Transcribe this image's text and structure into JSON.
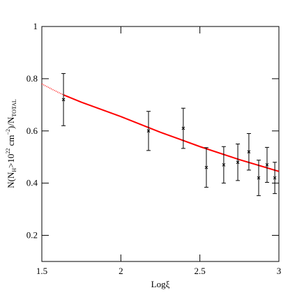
{
  "chart_data": {
    "type": "scatter",
    "xlabel": "Logξ",
    "ylabel_parts": [
      "N(N",
      "H",
      ">10",
      "22",
      " cm",
      "−2",
      ")/N",
      "TOTAL"
    ],
    "x": [
      1.637,
      2.175,
      2.395,
      2.541,
      2.651,
      2.74,
      2.81,
      2.872,
      2.925,
      2.974
    ],
    "values": [
      0.72,
      0.6,
      0.61,
      0.46,
      0.47,
      0.48,
      0.52,
      0.42,
      0.47,
      0.42
    ],
    "errors": [
      0.1,
      0.075,
      0.077,
      0.076,
      0.07,
      0.07,
      0.07,
      0.068,
      0.067,
      0.06
    ],
    "color": "#000000",
    "curves": [
      {
        "x": [
          1.5,
          1.57,
          1.637
        ],
        "values": [
          0.78,
          0.758,
          0.738
        ],
        "color": "#ff0000",
        "style": "dotted"
      },
      {
        "x": [
          1.637,
          1.75,
          2,
          2.25,
          2.5,
          2.75,
          3
        ],
        "values": [
          0.738,
          0.71,
          0.655,
          0.595,
          0.54,
          0.49,
          0.445
        ],
        "color": "#ff0000",
        "style": "solid"
      }
    ],
    "xlim": [
      1.5,
      3
    ],
    "ylim": [
      0.1,
      1
    ],
    "xticks": [
      1.5,
      2,
      2.5,
      3
    ],
    "yticks": [
      0.2,
      0.4,
      0.6,
      0.8,
      1
    ]
  }
}
